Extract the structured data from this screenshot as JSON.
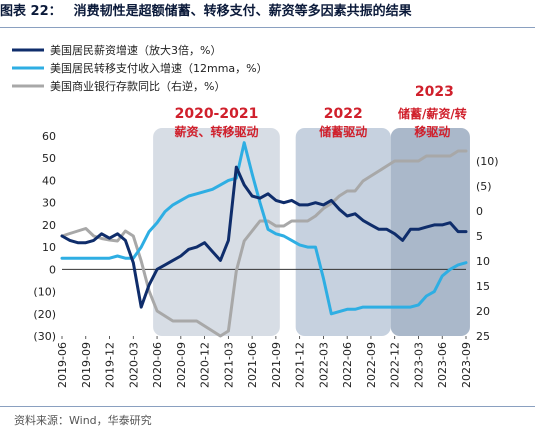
{
  "title": {
    "label": "图表 22：",
    "text": "消费韧性是超额储蓄、转移支付、薪资等多因素共振的结果"
  },
  "source": "资料来源：Wind，华泰研究",
  "chart_data": {
    "type": "line",
    "x": [
      "2019-06",
      "2019-07",
      "2019-08",
      "2019-09",
      "2019-10",
      "2019-11",
      "2019-12",
      "2020-01",
      "2020-02",
      "2020-03",
      "2020-04",
      "2020-05",
      "2020-06",
      "2020-07",
      "2020-08",
      "2020-09",
      "2020-10",
      "2020-11",
      "2020-12",
      "2021-01",
      "2021-02",
      "2021-03",
      "2021-04",
      "2021-05",
      "2021-06",
      "2021-07",
      "2021-08",
      "2021-09",
      "2021-10",
      "2021-11",
      "2021-12",
      "2022-01",
      "2022-02",
      "2022-03",
      "2022-04",
      "2022-05",
      "2022-06",
      "2022-07",
      "2022-08",
      "2022-09",
      "2022-10",
      "2022-11",
      "2022-12",
      "2023-01",
      "2023-02",
      "2023-03",
      "2023-04",
      "2023-05",
      "2023-06",
      "2023-07",
      "2023-08",
      "2023-09"
    ],
    "x_tick_labels": [
      "2019-06",
      "2019-09",
      "2019-12",
      "2020-03",
      "2020-06",
      "2020-09",
      "2020-12",
      "2021-03",
      "2021-06",
      "2021-09",
      "2021-12",
      "2022-03",
      "2022-06",
      "2022-09",
      "2022-12",
      "2023-03",
      "2023-06",
      "2023-09"
    ],
    "left_axis": {
      "ylim": [
        -30,
        60
      ],
      "ticks": [
        60,
        50,
        40,
        30,
        20,
        10,
        0,
        -10,
        -20,
        -30
      ],
      "tick_labels": [
        "60",
        "50",
        "40",
        "30",
        "20",
        "10",
        "0",
        "(10)",
        "(20)",
        "(30)"
      ]
    },
    "right_axis": {
      "ylim": [
        -15,
        25
      ],
      "inverted": true,
      "ticks": [
        -10,
        -5,
        0,
        5,
        10,
        15,
        20,
        25
      ],
      "tick_labels": [
        "(10)",
        "(5)",
        "0",
        "5",
        "10",
        "15",
        "20",
        "25"
      ]
    },
    "series": [
      {
        "name": "美国居民薪资增速（放大3倍，%）",
        "color": "#0f2d6b",
        "axis": "left",
        "values": [
          15,
          13,
          12,
          12,
          13,
          16,
          14,
          16,
          13,
          3,
          -17,
          -7,
          0,
          2,
          4,
          6,
          9,
          10,
          12,
          8,
          4,
          13,
          46,
          38,
          33,
          32,
          34,
          31,
          30,
          31,
          29,
          29,
          30,
          29,
          31,
          27,
          24,
          25,
          22,
          20,
          18,
          18,
          16,
          13,
          18,
          18,
          19,
          20,
          20,
          21,
          17,
          17
        ]
      },
      {
        "name": "美国居民转移支付收入增速（12mma，%）",
        "color": "#2eaee3",
        "axis": "left",
        "values": [
          5,
          5,
          5,
          5,
          5,
          5,
          5,
          6,
          5,
          5,
          10,
          17,
          21,
          26,
          29,
          31,
          33,
          34,
          35,
          36,
          38,
          40,
          41,
          57,
          43,
          30,
          18,
          16,
          15,
          13,
          11,
          10,
          10,
          -4,
          -20,
          -19,
          -18,
          -18,
          -17,
          -17,
          -17,
          -17,
          -17,
          -17,
          -17,
          -16,
          -12,
          -10,
          -3,
          0,
          2,
          3
        ]
      },
      {
        "name": "美国商业银行存款同比（右逆，%）",
        "color": "#a8a8a8",
        "axis": "right",
        "values": [
          5,
          4.5,
          4,
          3.5,
          5,
          5.5,
          5.8,
          6,
          4,
          5,
          10,
          16,
          20,
          21,
          22,
          22,
          22,
          22,
          23,
          24,
          25,
          24,
          12,
          6,
          4,
          2,
          2,
          3,
          3,
          2,
          2,
          2,
          1,
          -0.5,
          -1.5,
          -3,
          -4,
          -4,
          -6,
          -7,
          -8,
          -9,
          -10,
          -10,
          -10,
          -10,
          -11,
          -11,
          -11,
          -11,
          -12,
          -12
        ]
      }
    ],
    "legend": [
      "美国居民薪资增速（放大3倍，%）",
      "美国居民转移支付收入增速（12mma，%）",
      "美国商业银行存款同比（右逆，%）"
    ],
    "legend_placement": "top-left",
    "shaded_periods": [
      {
        "year_label": "2020-2021",
        "sub_label": "薪资、转移驱动",
        "start": "2020-06",
        "end": "2021-09",
        "color": "#c9d1dc"
      },
      {
        "year_label": "2022",
        "sub_label": "储蓄驱动",
        "start": "2021-12",
        "end": "2022-11",
        "color": "#b3c1d4"
      },
      {
        "year_label": "2023",
        "sub_label": "储蓄/薪资/转移驱动",
        "start": "2022-12",
        "end": "2023-09",
        "color": "#8da0b8"
      }
    ],
    "grid": false
  }
}
